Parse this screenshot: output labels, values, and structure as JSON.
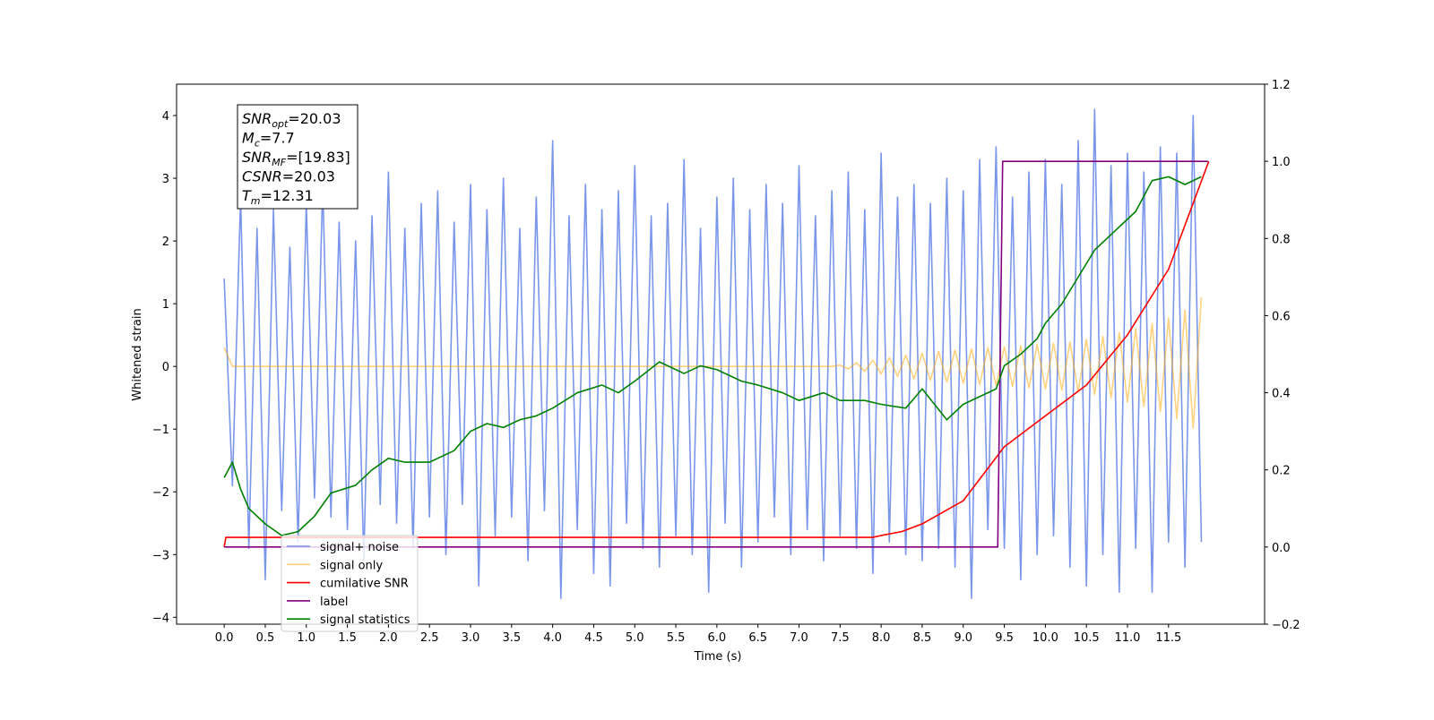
{
  "chart_data": {
    "type": "line",
    "xlabel": "Time (s)",
    "ylabel": "Whitened strain",
    "xlim": [
      -0.58,
      12.67
    ],
    "ylim": [
      -4.11,
      4.5
    ],
    "y2lim": [
      -0.2,
      1.2
    ],
    "xticks": [
      {
        "value": 0,
        "label": "0.0"
      },
      {
        "value": 0.5,
        "label": "0.5"
      },
      {
        "value": 1,
        "label": "1.0"
      },
      {
        "value": 1.5,
        "label": "1.5"
      },
      {
        "value": 2,
        "label": "2.0"
      },
      {
        "value": 2.5,
        "label": "2.5"
      },
      {
        "value": 3,
        "label": "3.0"
      },
      {
        "value": 3.5,
        "label": "3.5"
      },
      {
        "value": 4,
        "label": "4.0"
      },
      {
        "value": 4.5,
        "label": "4.5"
      },
      {
        "value": 5,
        "label": "5.0"
      },
      {
        "value": 5.5,
        "label": "5.5"
      },
      {
        "value": 6,
        "label": "6.0"
      },
      {
        "value": 6.5,
        "label": "6.5"
      },
      {
        "value": 7,
        "label": "7.0"
      },
      {
        "value": 7.5,
        "label": "7.5"
      },
      {
        "value": 8,
        "label": "8.0"
      },
      {
        "value": 8.5,
        "label": "8.5"
      },
      {
        "value": 9,
        "label": "9.0"
      },
      {
        "value": 9.5,
        "label": "9.5"
      },
      {
        "value": 10,
        "label": "10.0"
      },
      {
        "value": 10.5,
        "label": "10.5"
      },
      {
        "value": 11,
        "label": "11.0"
      },
      {
        "value": 11.5,
        "label": "11.5"
      }
    ],
    "yticks": [
      {
        "value": -4,
        "label": "−4"
      },
      {
        "value": -3,
        "label": "−3"
      },
      {
        "value": -2,
        "label": "−2"
      },
      {
        "value": -1,
        "label": "−1"
      },
      0,
      1,
      2,
      3,
      4
    ],
    "y2ticks": [
      {
        "value": -0.2,
        "label": "−0.2"
      },
      {
        "value": 0,
        "label": "0.0"
      },
      {
        "value": 0.2,
        "label": "0.2"
      },
      {
        "value": 0.4,
        "label": "0.4"
      },
      {
        "value": 0.6,
        "label": "0.6"
      },
      {
        "value": 0.8,
        "label": "0.8"
      },
      {
        "value": 1,
        "label": "1.0"
      },
      {
        "value": 1.2,
        "label": "1.2"
      }
    ],
    "annotation": [
      {
        "main": "SNR",
        "sub": "opt",
        "rest": "=20.03"
      },
      {
        "main": "M",
        "sub": "c",
        "rest": "=7.7"
      },
      {
        "main": "SNR",
        "sub": "MF",
        "rest": "=[19.83]"
      },
      {
        "main": "CSNR",
        "sub": "",
        "rest": "=20.03"
      },
      {
        "main": "T",
        "sub": "m",
        "rest": "=12.31"
      }
    ],
    "x": [
      0,
      0.1,
      0.2,
      0.3,
      0.4,
      0.5,
      0.6,
      0.7,
      0.8,
      0.9,
      1,
      1.1,
      1.2,
      1.3,
      1.4,
      1.5,
      1.6,
      1.7,
      1.8,
      1.9,
      2,
      2.1,
      2.2,
      2.3,
      2.4,
      2.5,
      2.6,
      2.7,
      2.8,
      2.9,
      3,
      3.1,
      3.2,
      3.3,
      3.4,
      3.5,
      3.6,
      3.7,
      3.8,
      3.9,
      4,
      4.1,
      4.2,
      4.3,
      4.4,
      4.5,
      4.6,
      4.7,
      4.8,
      4.9,
      5,
      5.1,
      5.2,
      5.3,
      5.4,
      5.5,
      5.6,
      5.7,
      5.8,
      5.9,
      6,
      6.1,
      6.2,
      6.3,
      6.4,
      6.5,
      6.6,
      6.7,
      6.8,
      6.9,
      7,
      7.1,
      7.2,
      7.3,
      7.4,
      7.5,
      7.6,
      7.7,
      7.8,
      7.9,
      8,
      8.1,
      8.2,
      8.3,
      8.4,
      8.5,
      8.6,
      8.7,
      8.8,
      8.9,
      9,
      9.1,
      9.2,
      9.3,
      9.4,
      9.5,
      9.6,
      9.7,
      9.8,
      9.9,
      10,
      10.1,
      10.2,
      10.3,
      10.4,
      10.5,
      10.6,
      10.7,
      10.8,
      10.9,
      11,
      11.1,
      11.2,
      11.3,
      11.4,
      11.5,
      11.6,
      11.7,
      11.8,
      11.9
    ],
    "series": [
      {
        "name": "signal+ noise",
        "color": "#4169e1",
        "opacity": 0.7,
        "values": [
          1.4,
          -1.9,
          2.7,
          -2.9,
          2.2,
          -3.4,
          2.5,
          -2.3,
          1.9,
          -2.8,
          2.6,
          -2.1,
          2.9,
          -2.4,
          2.3,
          -2.6,
          2.0,
          -3.1,
          2.4,
          -2.2,
          3.1,
          -2.5,
          2.2,
          -2.9,
          2.6,
          -2.4,
          2.8,
          -3.0,
          2.3,
          -2.2,
          2.9,
          -3.5,
          2.5,
          -2.7,
          3.0,
          -2.4,
          2.2,
          -3.1,
          2.7,
          -2.3,
          3.6,
          -3.7,
          2.4,
          -2.6,
          2.9,
          -3.3,
          2.5,
          -3.5,
          2.8,
          -2.5,
          3.2,
          -2.9,
          2.4,
          -3.2,
          2.6,
          -2.7,
          3.3,
          -3.0,
          2.2,
          -3.6,
          2.7,
          -2.5,
          3.0,
          -3.2,
          2.5,
          -2.8,
          2.9,
          -2.4,
          2.6,
          -3.0,
          3.2,
          -2.6,
          2.4,
          -3.1,
          2.8,
          -2.7,
          3.1,
          -2.9,
          2.5,
          -3.3,
          3.4,
          -2.8,
          2.7,
          -3.0,
          2.9,
          -3.1,
          2.6,
          -2.9,
          3.0,
          -3.2,
          2.8,
          -3.7,
          3.3,
          -2.6,
          3.5,
          -2.9,
          2.7,
          -3.4,
          3.1,
          -3.0,
          3.3,
          -2.7,
          2.9,
          -3.2,
          3.6,
          -3.5,
          4.1,
          -3.0,
          3.2,
          -3.6,
          3.4,
          -2.9,
          3.1,
          -3.6,
          3.5,
          -2.8,
          3.4,
          -3.2,
          4.0,
          -2.8
        ]
      },
      {
        "name": "signal only",
        "color": "#ffa500",
        "opacity": 0.5,
        "values": [
          0.3,
          0,
          0,
          0,
          0,
          0,
          0,
          0,
          0,
          0,
          0,
          0,
          0,
          0,
          0,
          0,
          0,
          0,
          0,
          0,
          0,
          0,
          0,
          0,
          0,
          0,
          0,
          0,
          0,
          0,
          0,
          0,
          0,
          0,
          0,
          0,
          0,
          0,
          0,
          0,
          0,
          0,
          0,
          0,
          0,
          0,
          0,
          0,
          0,
          0,
          0,
          0,
          0,
          0,
          0,
          0,
          0,
          0,
          0,
          0,
          0,
          0,
          0,
          0,
          0,
          0,
          0,
          0,
          0,
          0,
          0,
          0,
          0,
          0,
          0,
          0.02,
          -0.04,
          0.06,
          -0.08,
          0.1,
          -0.12,
          0.14,
          -0.16,
          0.18,
          -0.2,
          0.21,
          -0.22,
          0.24,
          -0.25,
          0.26,
          -0.27,
          0.28,
          -0.29,
          0.3,
          -0.3,
          0.31,
          -0.32,
          0.33,
          -0.34,
          0.35,
          -0.36,
          0.37,
          -0.38,
          0.39,
          -0.41,
          0.43,
          -0.45,
          0.48,
          -0.5,
          0.54,
          -0.57,
          0.6,
          -0.64,
          0.68,
          -0.72,
          0.77,
          -0.83,
          0.9,
          -0.98,
          1.1
        ]
      },
      {
        "name": "cumilative SNR",
        "color": "#ff0000",
        "axis": "y2",
        "x": [
          0,
          0.02,
          7.9,
          8.0,
          8.25,
          8.5,
          8.75,
          9.0,
          9.5,
          10.0,
          10.5,
          11.0,
          11.5,
          11.99
        ],
        "values": [
          0,
          0.025,
          0.025,
          0.03,
          0.04,
          0.06,
          0.09,
          0.12,
          0.26,
          0.34,
          0.42,
          0.55,
          0.72,
          1.0
        ]
      },
      {
        "name": "label",
        "color": "#800080",
        "axis": "y2",
        "x": [
          0,
          9.42,
          9.48,
          11.98
        ],
        "values": [
          0,
          0,
          1,
          1
        ]
      },
      {
        "name": "signal statistics",
        "color": "#008000",
        "axis": "y2",
        "x": [
          0,
          0.1,
          0.2,
          0.3,
          0.5,
          0.7,
          0.9,
          1.1,
          1.3,
          1.6,
          1.8,
          2.0,
          2.2,
          2.5,
          2.8,
          3.0,
          3.2,
          3.4,
          3.6,
          3.8,
          4.0,
          4.3,
          4.6,
          4.8,
          5.0,
          5.3,
          5.6,
          5.8,
          6.0,
          6.3,
          6.5,
          6.8,
          7.0,
          7.3,
          7.5,
          7.8,
          8.0,
          8.3,
          8.5,
          8.8,
          9.0,
          9.2,
          9.4,
          9.5,
          9.7,
          9.9,
          10.0,
          10.2,
          10.4,
          10.6,
          10.9,
          11.1,
          11.3,
          11.5,
          11.7,
          11.9
        ],
        "values": [
          0.18,
          0.22,
          0.15,
          0.1,
          0.06,
          0.03,
          0.04,
          0.08,
          0.14,
          0.16,
          0.2,
          0.23,
          0.22,
          0.22,
          0.25,
          0.3,
          0.32,
          0.31,
          0.33,
          0.34,
          0.36,
          0.4,
          0.42,
          0.4,
          0.43,
          0.48,
          0.45,
          0.47,
          0.46,
          0.43,
          0.42,
          0.4,
          0.38,
          0.4,
          0.38,
          0.38,
          0.37,
          0.36,
          0.41,
          0.33,
          0.37,
          0.39,
          0.41,
          0.47,
          0.5,
          0.54,
          0.58,
          0.63,
          0.7,
          0.77,
          0.83,
          0.87,
          0.95,
          0.96,
          0.94,
          0.96
        ]
      }
    ]
  }
}
